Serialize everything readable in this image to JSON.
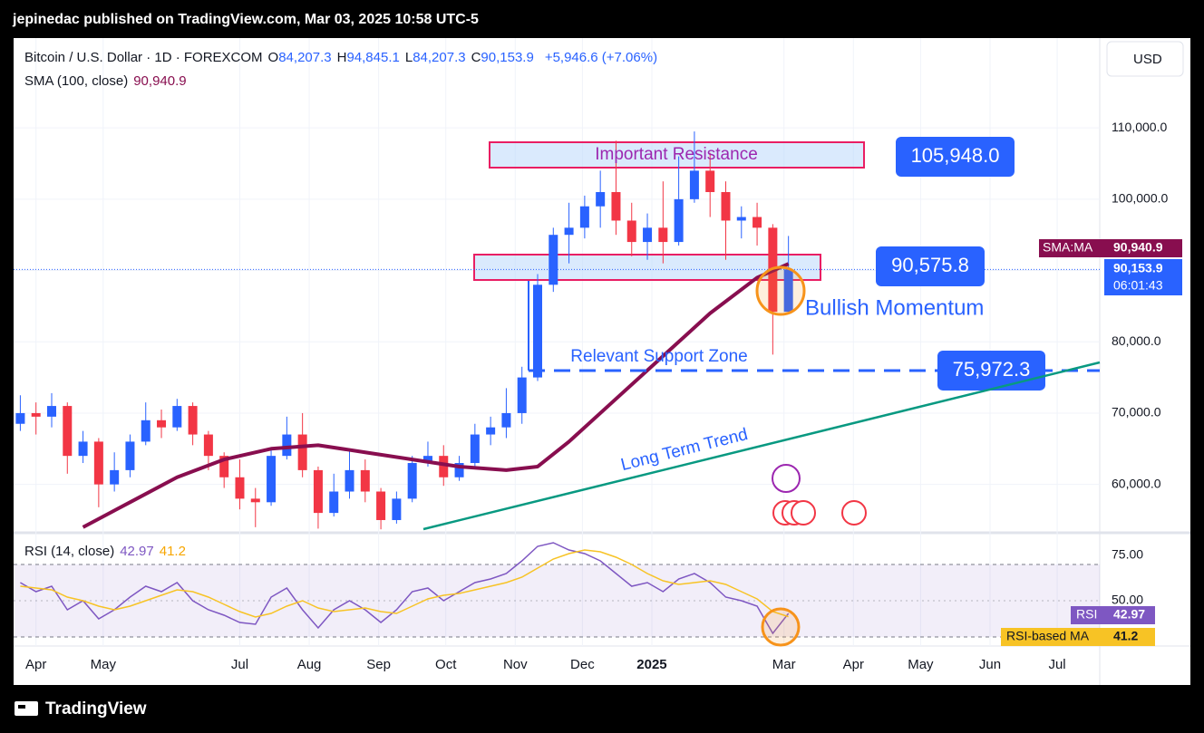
{
  "header": {
    "publisher": "jepinedac published on TradingView.com, Mar 03, 2025 10:58 UTC-5"
  },
  "footer": {
    "brand": "TradingView"
  },
  "chart_data": [
    {
      "type": "candlestick",
      "title": "Bitcoin / U.S. Dollar · 1D · FOREXCOM",
      "ohlc_legend": [
        {
          "label": "O",
          "value": "84,207.3"
        },
        {
          "label": "H",
          "value": "94,845.1"
        },
        {
          "label": "L",
          "value": "84,207.3"
        },
        {
          "label": "C",
          "value": "90,153.9"
        }
      ],
      "change": "+5,946.6 (+7.06%)",
      "currency": "USD",
      "x": [
        "2024-03-25",
        "2024-04-01",
        "2024-04-08",
        "2024-04-15",
        "2024-04-22",
        "2024-04-29",
        "2024-05-06",
        "2024-05-13",
        "2024-05-20",
        "2024-05-27",
        "2024-06-03",
        "2024-06-10",
        "2024-06-17",
        "2024-06-24",
        "2024-07-01",
        "2024-07-08",
        "2024-07-15",
        "2024-07-22",
        "2024-07-29",
        "2024-08-05",
        "2024-08-12",
        "2024-08-19",
        "2024-08-26",
        "2024-09-02",
        "2024-09-09",
        "2024-09-16",
        "2024-09-23",
        "2024-09-30",
        "2024-10-07",
        "2024-10-14",
        "2024-10-21",
        "2024-10-28",
        "2024-11-04",
        "2024-11-11",
        "2024-11-18",
        "2024-11-25",
        "2024-12-02",
        "2024-12-09",
        "2024-12-16",
        "2024-12-23",
        "2024-12-30",
        "2025-01-06",
        "2025-01-13",
        "2025-01-20",
        "2025-01-27",
        "2025-02-03",
        "2025-02-10",
        "2025-02-17",
        "2025-02-24",
        "2025-03-03"
      ],
      "open": [
        68500,
        70000,
        69500,
        71000,
        64000,
        66000,
        60000,
        62000,
        66000,
        69000,
        68000,
        71000,
        67000,
        64000,
        61000,
        58000,
        57500,
        64000,
        67000,
        62000,
        56000,
        59000,
        62000,
        59000,
        55000,
        58000,
        63000,
        64000,
        61000,
        63000,
        67000,
        68000,
        70000,
        75000,
        88000,
        95000,
        96000,
        99000,
        101000,
        97000,
        94000,
        96000,
        94000,
        100000,
        104000,
        101000,
        97000,
        97500,
        96000,
        84207.3
      ],
      "high": [
        72500,
        71500,
        72800,
        71500,
        67500,
        66500,
        64500,
        67000,
        71500,
        70500,
        72000,
        71500,
        67500,
        64500,
        63500,
        59500,
        65000,
        69500,
        70000,
        62500,
        61500,
        64800,
        63500,
        59500,
        59000,
        64000,
        66000,
        65500,
        64000,
        68500,
        69500,
        73500,
        76500,
        89500,
        96000,
        99500,
        100500,
        104000,
        108200,
        99500,
        98000,
        102500,
        106000,
        109500,
        106500,
        102500,
        99000,
        99500,
        96500,
        94845.1
      ],
      "low": [
        67500,
        67000,
        68000,
        61500,
        63000,
        56800,
        59000,
        61000,
        65500,
        66500,
        67500,
        65500,
        62000,
        59500,
        56500,
        54000,
        57000,
        63500,
        61000,
        53800,
        55500,
        58000,
        57500,
        53700,
        54500,
        57500,
        62500,
        59800,
        60500,
        62500,
        65500,
        66500,
        68500,
        74500,
        87000,
        91000,
        94500,
        96000,
        95000,
        92000,
        91500,
        91000,
        93500,
        99500,
        97500,
        91500,
        94500,
        93500,
        78200,
        84207.3
      ],
      "close": [
        70000,
        69500,
        71000,
        64000,
        66000,
        60000,
        62000,
        66000,
        69000,
        68000,
        71000,
        67000,
        64000,
        61000,
        58000,
        57500,
        64000,
        67000,
        62000,
        56000,
        59000,
        62000,
        59000,
        55000,
        58000,
        63000,
        64000,
        61000,
        63000,
        67000,
        68000,
        70000,
        75000,
        88000,
        95000,
        96000,
        99000,
        101000,
        97000,
        94000,
        96000,
        94000,
        100000,
        104000,
        101000,
        97000,
        97500,
        96000,
        84207.3,
        90153.9
      ],
      "up_color": "#2962ff",
      "down_color": "#f23645",
      "sma": {
        "name": "SMA (100, close)",
        "badge_name": "SMA:MA",
        "value_label": "90,940.9",
        "color": "#880e4f",
        "x": [
          "2024-04-22",
          "2024-05-13",
          "2024-06-03",
          "2024-06-24",
          "2024-07-15",
          "2024-08-05",
          "2024-08-26",
          "2024-09-16",
          "2024-10-07",
          "2024-10-28",
          "2024-11-11",
          "2024-11-25",
          "2024-12-16",
          "2025-01-06",
          "2025-01-27",
          "2025-02-17",
          "2025-03-03"
        ],
        "values": [
          54000,
          57500,
          61000,
          63500,
          65000,
          65500,
          64500,
          63500,
          62500,
          62000,
          62500,
          66000,
          72000,
          78000,
          84000,
          89000,
          90940.9
        ]
      },
      "last_price": {
        "value": 90153.9,
        "label": "90,153.9",
        "countdown": "06:01:43"
      },
      "annotations": {
        "resistance": {
          "text": "Important Resistance",
          "value": 105948.0,
          "label": "105,948.0"
        },
        "support_box": {
          "value": 90575.8,
          "label": "90,575.8"
        },
        "support_line": {
          "text": "Relevant Support Zone",
          "value": 75972.3,
          "label": "75,972.3"
        },
        "trend": {
          "text": "Long Term Trend",
          "color": "#089981"
        },
        "momentum": {
          "text": "Bullish Momentum"
        }
      },
      "xlim": [
        "2024-03-22",
        "2025-07-20"
      ],
      "ylim": [
        53600,
        122600
      ],
      "yticks": [
        {
          "value": 60000,
          "label": "60,000.0"
        },
        {
          "value": 70000,
          "label": "70,000.0"
        },
        {
          "value": 80000,
          "label": "80,000.0"
        },
        {
          "value": 90000,
          "label": "90,000.0"
        },
        {
          "value": 100000,
          "label": "100,000.0"
        },
        {
          "value": 110000,
          "label": "110,000.0"
        }
      ],
      "xticks": [
        {
          "value": "2024-04-01",
          "label": "Apr"
        },
        {
          "value": "2024-05-01",
          "label": "May"
        },
        {
          "value": "2024-07-01",
          "label": "Jul"
        },
        {
          "value": "2024-08-01",
          "label": "Aug"
        },
        {
          "value": "2024-09-01",
          "label": "Sep"
        },
        {
          "value": "2024-10-01",
          "label": "Oct"
        },
        {
          "value": "2024-11-01",
          "label": "Nov"
        },
        {
          "value": "2024-12-01",
          "label": "Dec"
        },
        {
          "value": "2025-01-01",
          "label": "2025"
        },
        {
          "value": "2025-03-01",
          "label": "Mar"
        },
        {
          "value": "2025-04-01",
          "label": "Apr"
        },
        {
          "value": "2025-05-01",
          "label": "May"
        },
        {
          "value": "2025-06-01",
          "label": "Jun"
        },
        {
          "value": "2025-07-01",
          "label": "Jul"
        }
      ],
      "grid": true
    },
    {
      "type": "line",
      "title": "RSI (14, close)",
      "series": [
        {
          "name": "RSI",
          "color": "#7e57c2",
          "values": [
            60,
            55,
            58,
            45,
            50,
            40,
            45,
            52,
            58,
            55,
            60,
            50,
            45,
            42,
            38,
            37,
            52,
            57,
            45,
            35,
            45,
            50,
            45,
            38,
            45,
            55,
            57,
            50,
            55,
            60,
            62,
            65,
            72,
            80,
            82,
            78,
            76,
            72,
            65,
            58,
            60,
            55,
            62,
            65,
            60,
            52,
            50,
            47,
            32,
            42.97
          ]
        },
        {
          "name": "RSI-based MA",
          "color": "#f7c325",
          "values": [
            58,
            57,
            56,
            52,
            50,
            47,
            45,
            47,
            50,
            53,
            56,
            55,
            52,
            48,
            44,
            41,
            43,
            47,
            50,
            46,
            44,
            45,
            46,
            44,
            43,
            47,
            51,
            53,
            54,
            56,
            58,
            60,
            63,
            68,
            73,
            76,
            78,
            77,
            74,
            70,
            65,
            61,
            59,
            60,
            61,
            59,
            55,
            51,
            44,
            41.2
          ]
        }
      ],
      "bands": [
        30,
        70
      ],
      "ylim": [
        25,
        86.5
      ],
      "yticks": [
        {
          "value": 50,
          "label": "50.00"
        },
        {
          "value": 75,
          "label": "75.00"
        }
      ]
    }
  ]
}
